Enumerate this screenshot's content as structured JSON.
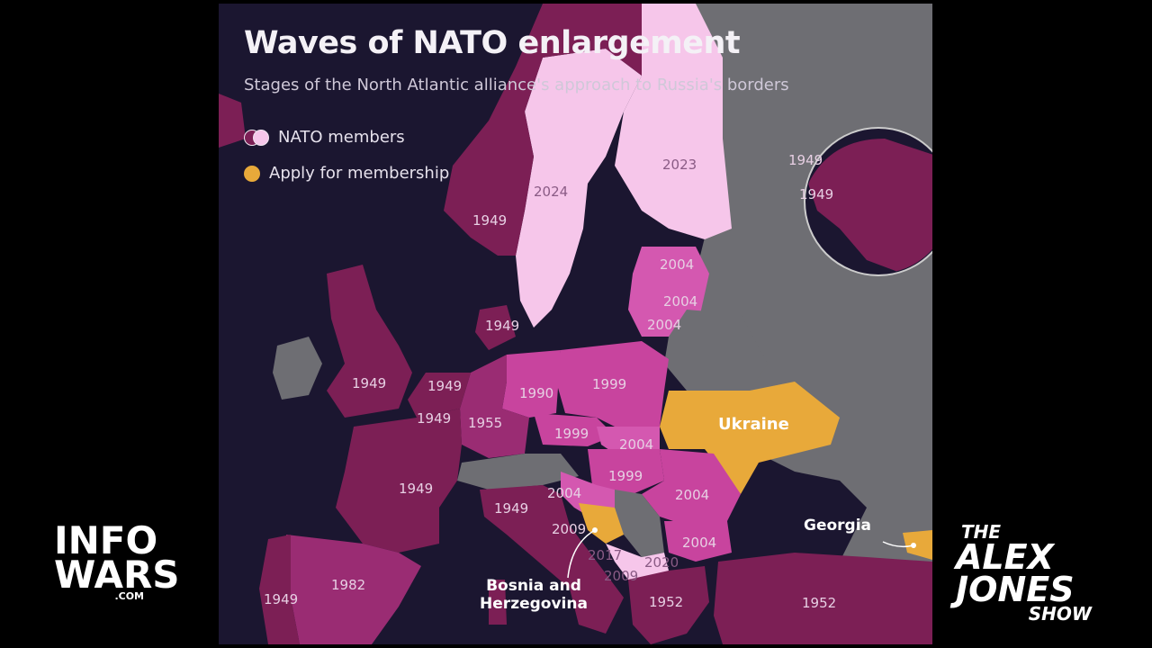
{
  "title": "Waves of NATO enlargement",
  "subtitle": "Stages of the North Atlantic alliance's approach to Russia's borders",
  "legend": {
    "members_label": "NATO members",
    "apply_label": "Apply for membership"
  },
  "colors": {
    "background": "#1b1630",
    "wave_1949": "#7c1f55",
    "wave_1952_1955_1982": "#9a2c73",
    "wave_1999_2004": "#c8449e",
    "wave_2023_2024": "#f6c6ea",
    "non_member": "#6e6e73",
    "applicant": "#e8a93a"
  },
  "years": {
    "sweden": "2024",
    "finland": "2023",
    "norway": "1949",
    "denmark": "1949",
    "estonia": "2004",
    "latvia": "2004",
    "lithuania": "2004",
    "uk": "1949",
    "netherlands": "1949",
    "belgium": "1949",
    "germany_w": "1955",
    "germany_e": "1990",
    "poland": "1999",
    "czechia": "1999",
    "slovakia": "2004",
    "hungary": "1999",
    "slovenia": "2004",
    "romania": "2004",
    "bulgaria": "2004",
    "france": "1949",
    "italy": "1949",
    "croatia": "2009",
    "montenegro": "2017",
    "albania": "2009",
    "north_macedonia": "2020",
    "greece": "1952",
    "turkey": "1952",
    "spain": "1982",
    "portugal": "1949",
    "canada": "1949",
    "usa": "1949"
  },
  "labels": {
    "ukraine": "Ukraine",
    "georgia": "Georgia",
    "bosnia_line1": "Bosnia and",
    "bosnia_line2": "Herzegovina"
  },
  "logos": {
    "infowars_top": "INFO",
    "infowars_bottom": "WARS",
    "infowars_com": ".COM",
    "show_the": "THE",
    "show_alex": "ALEX",
    "show_jones": "JONES",
    "show_show": "SHOW"
  }
}
